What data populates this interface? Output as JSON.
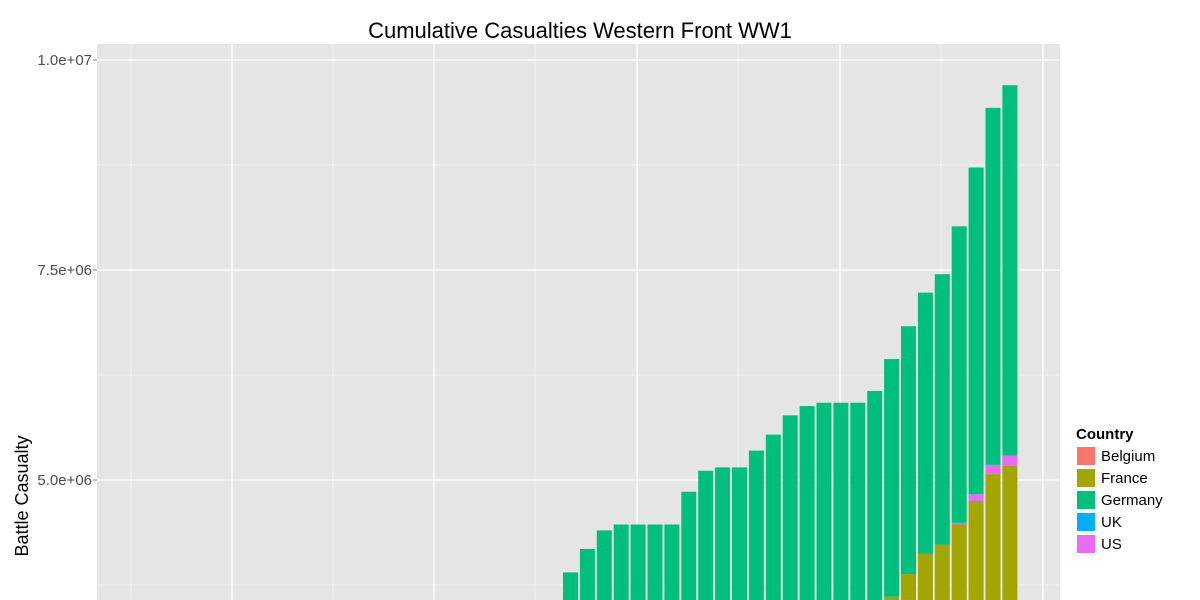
{
  "chart_data": {
    "type": "bar",
    "stacked": true,
    "title": "Cumulative Casualties Western Front WW1",
    "xlabel": "",
    "ylabel": "Battle Casualty",
    "ylim": [
      3500000,
      10300000
    ],
    "yticks": [
      5000000,
      7500000,
      10000000
    ],
    "ytick_labels": [
      "5.0e+06",
      "7.5e+06",
      "1.0e+07"
    ],
    "grid": true,
    "legend_position": "right",
    "legend_title": "Country",
    "series": [
      {
        "name": "Belgium",
        "color": "#F8766D"
      },
      {
        "name": "France",
        "color": "#A3A500"
      },
      {
        "name": "Germany",
        "color": "#00BF7D"
      },
      {
        "name": "UK",
        "color": "#00B0F6"
      },
      {
        "name": "US",
        "color": "#E76BF3"
      }
    ],
    "bar_totals": [
      3900000,
      4180000,
      4400000,
      4470000,
      4470000,
      4470000,
      4470000,
      4860000,
      5110000,
      5150000,
      5150000,
      5350000,
      5540000,
      5770000,
      5880000,
      5920000,
      5920000,
      5920000,
      6060000,
      6440000,
      6830000,
      7230000,
      7450000,
      8020000,
      8720000,
      9430000,
      9700000
    ],
    "france_tops": [
      0,
      0,
      0,
      0,
      0,
      0,
      0,
      0,
      0,
      0,
      0,
      0,
      0,
      0,
      0,
      0,
      0,
      0,
      0,
      3610000,
      3880000,
      4120000,
      4230000,
      4470000,
      4750000,
      5070000,
      5170000
    ],
    "us_tops": [
      0,
      0,
      0,
      0,
      0,
      0,
      0,
      0,
      0,
      0,
      0,
      0,
      0,
      0,
      0,
      0,
      0,
      0,
      0,
      0,
      0,
      0,
      0,
      4490000,
      4830000,
      5180000,
      5290000
    ]
  }
}
